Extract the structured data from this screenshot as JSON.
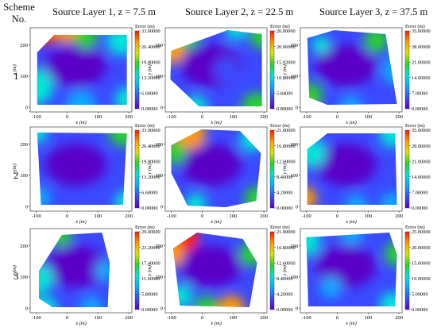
{
  "header": {
    "scheme": "Scheme",
    "no": "No."
  },
  "columns": [
    "Source Layer 1, z = 7.5 m",
    "Source Layer 2, z = 22.5 m",
    "Source Layer 3, z = 37.5 m"
  ],
  "rows": [
    "1",
    "2",
    "3"
  ],
  "colorscale": [
    "#5a00c8",
    "#3b49ff",
    "#0aa8ff",
    "#00e4d8",
    "#27d32b",
    "#d8e400",
    "#ff9a00",
    "#ff1a00"
  ],
  "chart_data": [
    {
      "type": "heatmap",
      "row": "1",
      "column": "Source Layer 1, z = 7.5 m",
      "xlabel": "x (m)",
      "ylabel": "y (m)",
      "xticks": [
        -100,
        0,
        100,
        200
      ],
      "yticks": [
        0,
        100,
        200
      ],
      "colorbar_title": "Error (m)",
      "colorbar_ticks": [
        "33.00000",
        "26.40000",
        "19.80000",
        "13.20000",
        "6.60000",
        "0.00000"
      ]
    },
    {
      "type": "heatmap",
      "row": "1",
      "column": "Source Layer 2, z = 22.5 m",
      "xlabel": "x (m)",
      "ylabel": "y (m)",
      "xticks": [
        -100,
        0,
        100,
        200
      ],
      "yticks": [
        0,
        100,
        200
      ],
      "colorbar_title": "Error (m)",
      "colorbar_ticks": [
        "26.00000",
        "20.96000",
        "15.92000",
        "10.88000",
        "5.84000",
        "0.80000"
      ]
    },
    {
      "type": "heatmap",
      "row": "1",
      "column": "Source Layer 3, z = 37.5 m",
      "xlabel": "x (m)",
      "ylabel": "y (m)",
      "xticks": [
        -100,
        0,
        100,
        200
      ],
      "yticks": [
        0,
        100,
        200
      ],
      "colorbar_title": "Error (m)",
      "colorbar_ticks": [
        "35.00000",
        "28.00000",
        "21.00000",
        "14.00000",
        "7.00000",
        "0.00000"
      ]
    },
    {
      "type": "heatmap",
      "row": "2",
      "column": "Source Layer 1, z = 7.5 m",
      "xlabel": "x (m)",
      "ylabel": "y (m)",
      "xticks": [
        -100,
        0,
        100,
        200
      ],
      "yticks": [
        0,
        100,
        200
      ],
      "colorbar_title": "Error (m)",
      "colorbar_ticks": [
        "33.00000",
        "26.40000",
        "19.80000",
        "13.20000",
        "6.60000",
        "0.00000"
      ]
    },
    {
      "type": "heatmap",
      "row": "2",
      "column": "Source Layer 2, z = 22.5 m",
      "xlabel": "x (m)",
      "ylabel": "y (m)",
      "xticks": [
        -100,
        0,
        100,
        200
      ],
      "yticks": [
        0,
        100,
        200
      ],
      "colorbar_title": "Error (m)",
      "colorbar_ticks": [
        "21.00000",
        "16.80000",
        "12.60000",
        "8.40000",
        "4.20000",
        "0.00000"
      ]
    },
    {
      "type": "heatmap",
      "row": "2",
      "column": "Source Layer 3, z = 37.5 m",
      "xlabel": "x (m)",
      "ylabel": "y (m)",
      "xticks": [
        -100,
        0,
        100,
        200
      ],
      "yticks": [
        0,
        100,
        200
      ],
      "colorbar_title": "Error (m)",
      "colorbar_ticks": [
        "35.00000",
        "28.00000",
        "21.00000",
        "14.00000",
        "7.00000",
        "0.00000"
      ]
    },
    {
      "type": "heatmap",
      "row": "3",
      "column": "Source Layer 1, z = 7.5 m",
      "xlabel": "x (m)",
      "ylabel": "y (m)",
      "xticks": [
        -100,
        0,
        100,
        200
      ],
      "yticks": [
        0,
        100,
        200
      ],
      "colorbar_title": "Error (m)",
      "colorbar_ticks": [
        "29.00000",
        "23.20000",
        "17.40000",
        "11.60000",
        "5.80000",
        "0.00000"
      ]
    },
    {
      "type": "heatmap",
      "row": "3",
      "column": "Source Layer 2, z = 22.5 m",
      "xlabel": "x (m)",
      "ylabel": "y (m)",
      "xticks": [
        -100,
        0,
        100,
        200
      ],
      "yticks": [
        0,
        100,
        200
      ],
      "colorbar_title": "Error (m)",
      "colorbar_ticks": [
        "21.00000",
        "16.80000",
        "12.60000",
        "8.40000",
        "4.20000",
        "0.00000"
      ]
    },
    {
      "type": "heatmap",
      "row": "3",
      "column": "Source Layer 3, z = 37.5 m",
      "xlabel": "x (m)",
      "ylabel": "y (m)",
      "xticks": [
        -100,
        0,
        100,
        200
      ],
      "yticks": [
        0,
        100,
        200
      ],
      "colorbar_title": "Error (m)",
      "colorbar_ticks": [
        "25.00000",
        "20.00000",
        "15.00000",
        "10.00000",
        "5.00000",
        "0.00000"
      ]
    }
  ]
}
